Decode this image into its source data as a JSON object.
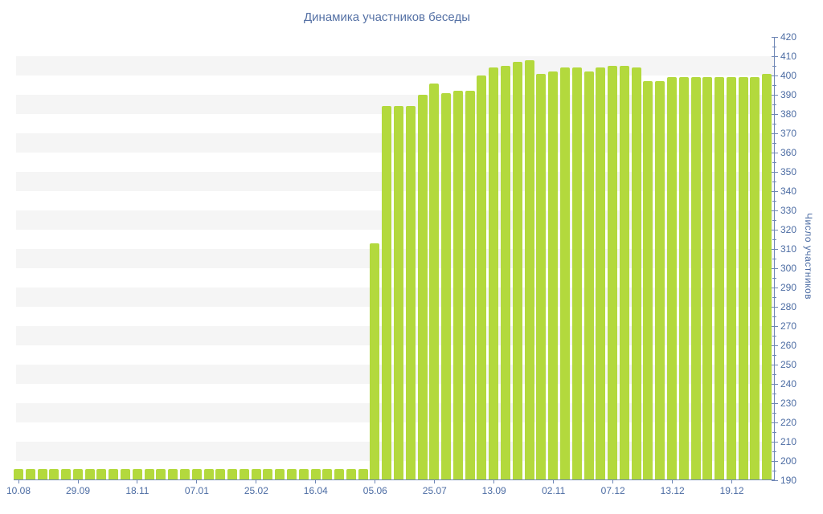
{
  "chart": {
    "title": "Динамика участников беседы",
    "y_axis_title": "Число участников",
    "colors": {
      "bar": "#b3d93d",
      "axis": "#6e86b5",
      "tick_label": "#4c6ca3",
      "title": "#5571a5",
      "stripe": "#f5f5f5"
    },
    "chart_data": {
      "type": "bar",
      "title": "Динамика участников беседы",
      "xlabel": "",
      "ylabel": "Число участников",
      "ylim": [
        190,
        420
      ],
      "y_tick_step": 10,
      "y_minor_tick_step": 5,
      "grid": "alternating horizontal bands every 10 units",
      "legend": "none",
      "y_axis_side": "right",
      "values": [
        196,
        196,
        196,
        196,
        196,
        196,
        196,
        196,
        196,
        196,
        196,
        196,
        196,
        196,
        196,
        196,
        196,
        196,
        196,
        196,
        196,
        196,
        196,
        196,
        196,
        196,
        196,
        196,
        196,
        196,
        313,
        384,
        384,
        384,
        390,
        396,
        391,
        392,
        392,
        400,
        404,
        405,
        407,
        408,
        401,
        402,
        404,
        404,
        402,
        404,
        405,
        405,
        404,
        397,
        397,
        399,
        399,
        399,
        399,
        399,
        399,
        399,
        399,
        401
      ],
      "x_tick_labels": [
        "10.08",
        "29.09",
        "18.11",
        "07.01",
        "25.02",
        "16.04",
        "05.06",
        "25.07",
        "13.09",
        "02.11",
        "07.12",
        "13.12",
        "19.12"
      ],
      "x_tick_indices": [
        0,
        5,
        10,
        15,
        20,
        25,
        30,
        35,
        40,
        45,
        50,
        55,
        60
      ]
    }
  }
}
